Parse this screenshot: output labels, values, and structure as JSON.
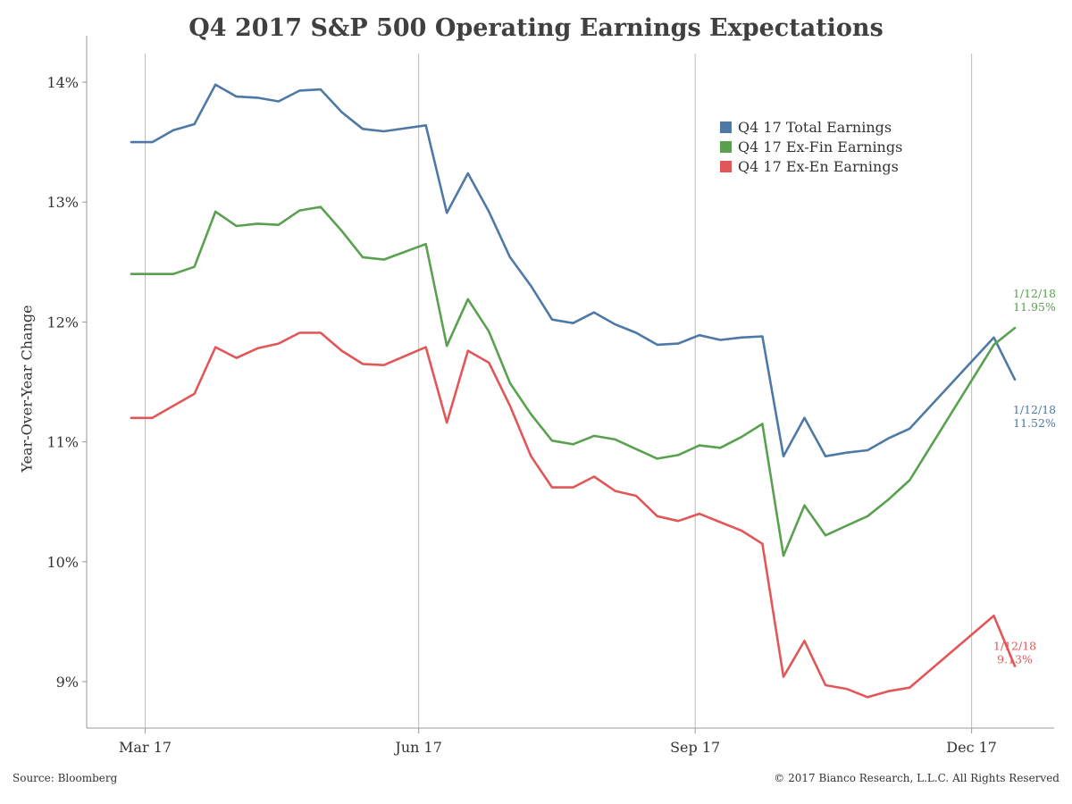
{
  "chart_data": {
    "type": "line",
    "title": "Q4 2017 S&P 500 Operating Earnings Expectations",
    "ylabel": "Year-Over-Year Change",
    "xlabel": "",
    "ylim": [
      8.6,
      14.4
    ],
    "y_ticks": [
      {
        "value": 9,
        "label": "9%"
      },
      {
        "value": 10,
        "label": "10%"
      },
      {
        "value": 11,
        "label": "11%"
      },
      {
        "value": 12,
        "label": "12%"
      },
      {
        "value": 13,
        "label": "13%"
      },
      {
        "value": 14,
        "label": "14%"
      }
    ],
    "x_ticks": [
      {
        "date": "2017-03-31",
        "label": "Mar 17"
      },
      {
        "date": "2017-06-30",
        "label": "Jun 17"
      },
      {
        "date": "2017-09-30",
        "label": "Sep 17"
      },
      {
        "date": "2017-12-31",
        "label": "Dec 17"
      }
    ],
    "x_range": [
      "2017-03-24",
      "2018-01-12"
    ],
    "grid": "vertical",
    "legend_position": "top-right",
    "x": [
      "2017-03-24",
      "2017-03-31",
      "2017-04-07",
      "2017-04-14",
      "2017-04-21",
      "2017-04-28",
      "2017-05-05",
      "2017-05-12",
      "2017-05-19",
      "2017-05-26",
      "2017-06-02",
      "2017-06-09",
      "2017-06-16",
      "2017-06-30",
      "2017-07-07",
      "2017-07-14",
      "2017-07-21",
      "2017-07-28",
      "2017-08-04",
      "2017-08-11",
      "2017-08-18",
      "2017-08-25",
      "2017-09-01",
      "2017-09-08",
      "2017-09-15",
      "2017-09-22",
      "2017-09-29",
      "2017-10-06",
      "2017-10-13",
      "2017-10-20",
      "2017-10-27",
      "2017-11-03",
      "2017-11-10",
      "2017-11-17",
      "2017-11-24",
      "2017-12-01",
      "2017-12-08",
      "2018-01-05",
      "2018-01-12"
    ],
    "series": [
      {
        "name": "Q4 17 Total Earnings",
        "color": "#4e79a7",
        "values": [
          13.5,
          13.5,
          13.6,
          13.65,
          13.98,
          13.88,
          13.87,
          13.84,
          13.93,
          13.94,
          13.75,
          13.61,
          13.59,
          13.64,
          12.91,
          13.24,
          12.92,
          12.54,
          12.3,
          12.02,
          11.99,
          12.08,
          11.98,
          11.91,
          11.81,
          11.82,
          11.89,
          11.85,
          11.87,
          11.88,
          10.88,
          11.2,
          10.88,
          10.91,
          10.93,
          11.03,
          11.11,
          11.87,
          11.52
        ],
        "end_label": [
          "1/12/18",
          "11.52%"
        ]
      },
      {
        "name": "Q4 17 Ex-Fin Earnings",
        "color": "#59a14f",
        "values": [
          12.4,
          12.4,
          12.4,
          12.46,
          12.92,
          12.8,
          12.82,
          12.81,
          12.93,
          12.96,
          12.76,
          12.54,
          12.52,
          12.65,
          11.8,
          12.19,
          11.92,
          11.49,
          11.23,
          11.01,
          10.98,
          11.05,
          11.02,
          10.94,
          10.86,
          10.89,
          10.97,
          10.95,
          11.04,
          11.15,
          10.05,
          10.47,
          10.22,
          10.3,
          10.38,
          10.52,
          10.68,
          11.81,
          11.95
        ],
        "end_label": [
          "1/12/18",
          "11.95%"
        ]
      },
      {
        "name": "Q4 17 Ex-En Earnings",
        "color": "#e15759",
        "values": [
          11.2,
          11.2,
          11.3,
          11.4,
          11.79,
          11.7,
          11.78,
          11.82,
          11.91,
          11.91,
          11.76,
          11.65,
          11.64,
          11.79,
          11.16,
          11.76,
          11.66,
          11.3,
          10.88,
          10.62,
          10.62,
          10.71,
          10.59,
          10.55,
          10.38,
          10.34,
          10.4,
          10.33,
          10.26,
          10.15,
          9.04,
          9.34,
          8.97,
          8.94,
          8.87,
          8.92,
          8.95,
          9.55,
          9.13
        ],
        "end_label": [
          "1/12/18",
          "9.13%"
        ]
      }
    ]
  },
  "source": "Source: Bloomberg",
  "copyright": "© 2017 Bianco Research, L.L.C. All Rights Reserved"
}
